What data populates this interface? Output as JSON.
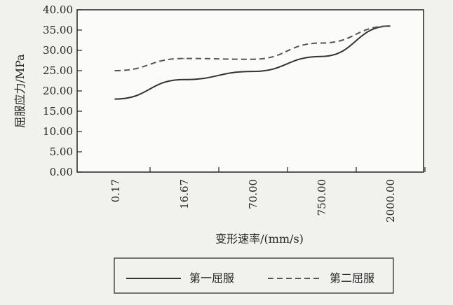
{
  "chart_data": {
    "type": "line",
    "xlabel": "变形速率/(mm/s)",
    "ylabel": "屈服应力/MPa",
    "categories": [
      "0.17",
      "16.67",
      "70.00",
      "750.00",
      "2000.00"
    ],
    "y_ticks": [
      "0.00",
      "5.00",
      "10.00",
      "15.00",
      "20.00",
      "25.00",
      "30.00",
      "35.00",
      "40.00"
    ],
    "ylim": [
      0,
      40
    ],
    "grid": false,
    "legend_position": "bottom",
    "series": [
      {
        "name": "第一屈服",
        "line_style": "solid",
        "color": "#333333",
        "values": [
          18.0,
          22.8,
          24.8,
          28.5,
          36.0
        ]
      },
      {
        "name": "第二屈服",
        "line_style": "dashed",
        "color": "#555555",
        "values": [
          25.0,
          28.0,
          27.8,
          31.8,
          36.0
        ]
      }
    ]
  }
}
